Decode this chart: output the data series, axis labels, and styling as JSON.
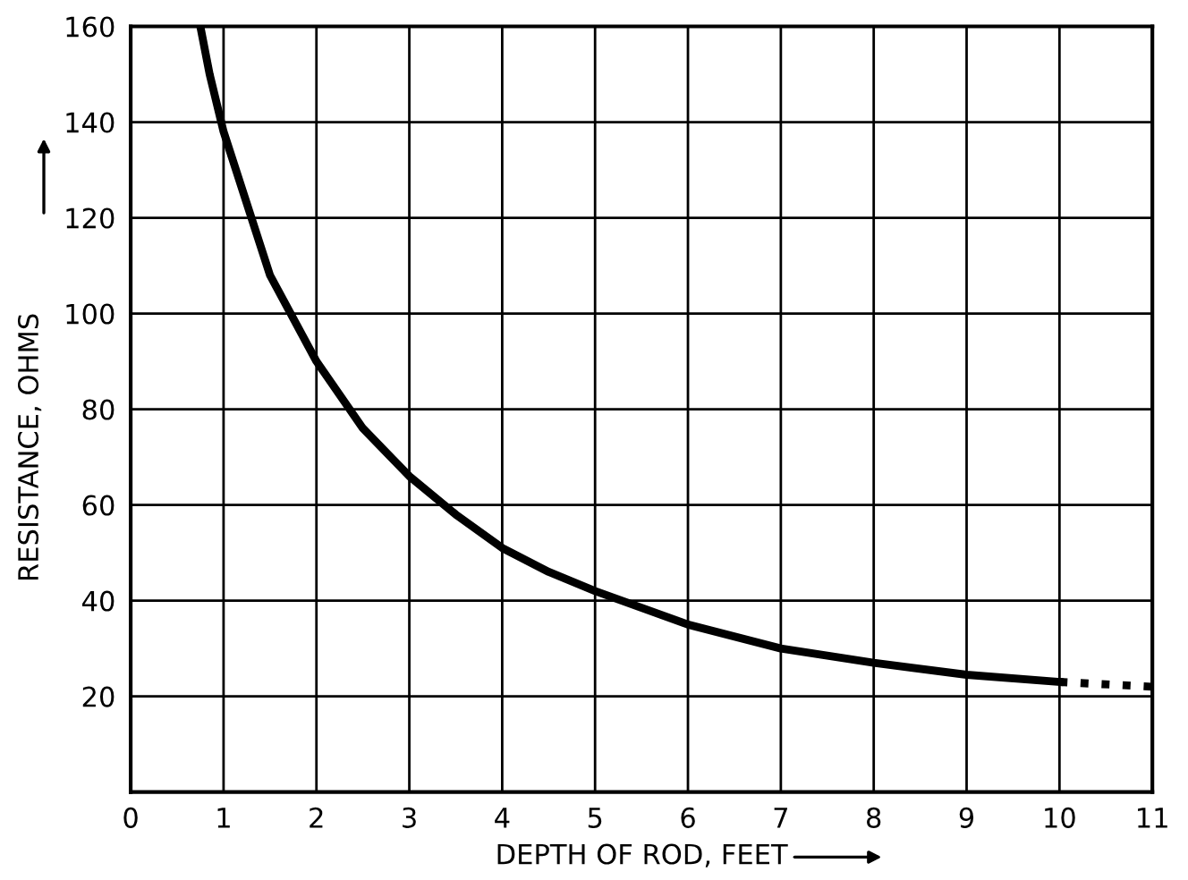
{
  "chart_data": {
    "type": "line",
    "xlabel": "DEPTH OF ROD, FEET",
    "ylabel": "RESISTANCE, OHMS",
    "xlim": [
      0,
      11
    ],
    "ylim": [
      0,
      160
    ],
    "xticks": [
      0,
      1,
      2,
      3,
      4,
      5,
      6,
      7,
      8,
      9,
      10,
      11
    ],
    "yticks": [
      {
        "value": 0,
        "label": null
      },
      20,
      40,
      60,
      80,
      100,
      120,
      140,
      160
    ],
    "grid": true,
    "marker": "none",
    "series": [
      {
        "color": "#000000",
        "line_style": "solid",
        "x": [
          0.75,
          0.85,
          1,
          1.5,
          2,
          2.5,
          3,
          3.5,
          4,
          4.5,
          5,
          6,
          7,
          8,
          9,
          10
        ],
        "values": [
          160,
          150,
          138,
          108,
          90,
          76,
          66,
          58,
          51,
          46,
          42,
          35,
          30,
          27,
          24.5,
          23
        ]
      },
      {
        "color": "#000000",
        "line_style": "dotted",
        "x": [
          10,
          11
        ],
        "values": [
          23,
          22
        ]
      }
    ]
  }
}
